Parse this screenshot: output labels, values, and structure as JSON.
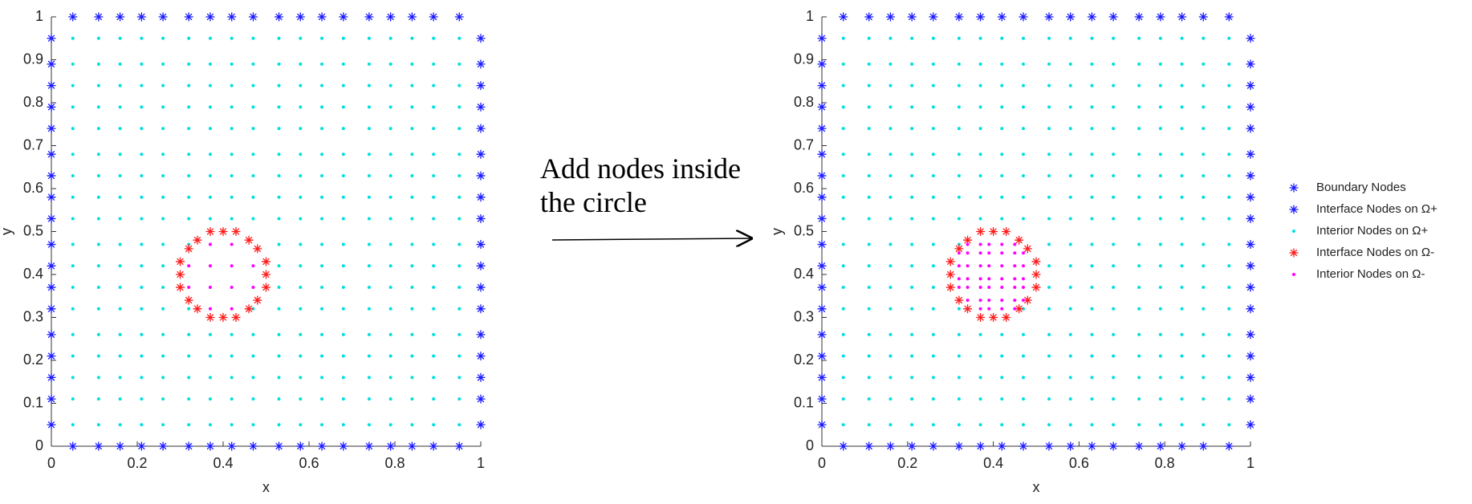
{
  "annotation": [
    "Add nodes inside",
    "the circle"
  ],
  "chart_data": [
    {
      "type": "scatter",
      "xlabel": "x",
      "ylabel": "y",
      "xlim": [
        0,
        1
      ],
      "ylim": [
        0,
        1
      ],
      "xticks": [
        0,
        0.2,
        0.4,
        0.6,
        0.8,
        1
      ],
      "yticks": [
        0,
        0.1,
        0.2,
        0.3,
        0.4,
        0.5,
        0.6,
        0.7,
        0.8,
        0.9,
        1
      ],
      "series": [
        {
          "name": "Boundary Nodes",
          "color": "#1a1aff",
          "marker": "*",
          "layout": "perimeter",
          "x": [
            0.05,
            0.11,
            0.16,
            0.21,
            0.26,
            0.32,
            0.37,
            0.42,
            0.47,
            0.53,
            0.58,
            0.63,
            0.68,
            0.74,
            0.79,
            0.84,
            0.89,
            0.95
          ],
          "y": [
            0.05,
            0.11,
            0.16,
            0.21,
            0.26,
            0.32,
            0.37,
            0.42,
            0.47,
            0.53,
            0.58,
            0.63,
            0.68,
            0.74,
            0.79,
            0.84,
            0.89,
            0.95
          ]
        },
        {
          "name": "Interface Nodes on Ω+",
          "color": "#1a1aff",
          "marker": "*",
          "layout": "points",
          "x": [],
          "y": []
        },
        {
          "name": "Interior Nodes on Ω+",
          "color": "#00e0e0",
          "marker": ".",
          "layout": "grid-outside",
          "x": [
            0.05,
            0.11,
            0.16,
            0.21,
            0.26,
            0.32,
            0.37,
            0.42,
            0.47,
            0.53,
            0.58,
            0.63,
            0.68,
            0.74,
            0.79,
            0.84,
            0.89,
            0.95
          ],
          "y": [
            0.05,
            0.11,
            0.16,
            0.21,
            0.26,
            0.32,
            0.37,
            0.42,
            0.47,
            0.53,
            0.58,
            0.63,
            0.68,
            0.74,
            0.79,
            0.84,
            0.89,
            0.95
          ]
        },
        {
          "name": "Interface Nodes on Ω-",
          "color": "#ff1a1a",
          "marker": "*",
          "layout": "ring",
          "x": [
            0.5,
            0.5,
            0.48,
            0.46,
            0.43,
            0.4,
            0.37,
            0.34,
            0.32,
            0.3,
            0.3,
            0.3,
            0.32,
            0.34,
            0.37,
            0.4,
            0.43,
            0.46,
            0.48,
            0.5
          ],
          "y": [
            0.4,
            0.43,
            0.46,
            0.48,
            0.5,
            0.5,
            0.5,
            0.48,
            0.46,
            0.43,
            0.4,
            0.37,
            0.34,
            0.32,
            0.3,
            0.3,
            0.3,
            0.32,
            0.34,
            0.37
          ]
        },
        {
          "name": "Interior Nodes on Ω-",
          "color": "#ff00ff",
          "marker": ".",
          "layout": "grid-inside",
          "x": [
            0.32,
            0.37,
            0.42,
            0.47
          ],
          "y": [
            0.32,
            0.37,
            0.42,
            0.47
          ]
        }
      ]
    },
    {
      "type": "scatter",
      "xlabel": "x",
      "ylabel": "y",
      "xlim": [
        0,
        1
      ],
      "ylim": [
        0,
        1
      ],
      "xticks": [
        0,
        0.2,
        0.4,
        0.6,
        0.8,
        1
      ],
      "yticks": [
        0,
        0.1,
        0.2,
        0.3,
        0.4,
        0.5,
        0.6,
        0.7,
        0.8,
        0.9,
        1
      ],
      "legend": "outside-right",
      "series": [
        {
          "name": "Boundary Nodes",
          "color": "#1a1aff",
          "marker": "*",
          "layout": "perimeter",
          "x": [
            0.05,
            0.11,
            0.16,
            0.21,
            0.26,
            0.32,
            0.37,
            0.42,
            0.47,
            0.53,
            0.58,
            0.63,
            0.68,
            0.74,
            0.79,
            0.84,
            0.89,
            0.95
          ],
          "y": [
            0.05,
            0.11,
            0.16,
            0.21,
            0.26,
            0.32,
            0.37,
            0.42,
            0.47,
            0.53,
            0.58,
            0.63,
            0.68,
            0.74,
            0.79,
            0.84,
            0.89,
            0.95
          ]
        },
        {
          "name": "Interface Nodes on Ω+",
          "color": "#1a1aff",
          "marker": "*",
          "layout": "points",
          "x": [],
          "y": []
        },
        {
          "name": "Interior Nodes on Ω+",
          "color": "#00e0e0",
          "marker": ".",
          "layout": "grid-outside",
          "x": [
            0.05,
            0.11,
            0.16,
            0.21,
            0.26,
            0.32,
            0.37,
            0.42,
            0.47,
            0.53,
            0.58,
            0.63,
            0.68,
            0.74,
            0.79,
            0.84,
            0.89,
            0.95
          ],
          "y": [
            0.05,
            0.11,
            0.16,
            0.21,
            0.26,
            0.32,
            0.37,
            0.42,
            0.47,
            0.53,
            0.58,
            0.63,
            0.68,
            0.74,
            0.79,
            0.84,
            0.89,
            0.95
          ]
        },
        {
          "name": "Interface Nodes on Ω-",
          "color": "#ff1a1a",
          "marker": "*",
          "layout": "ring",
          "x": [
            0.5,
            0.5,
            0.48,
            0.46,
            0.43,
            0.4,
            0.37,
            0.34,
            0.32,
            0.3,
            0.3,
            0.3,
            0.32,
            0.34,
            0.37,
            0.4,
            0.43,
            0.46,
            0.48,
            0.5
          ],
          "y": [
            0.4,
            0.43,
            0.46,
            0.48,
            0.5,
            0.5,
            0.5,
            0.48,
            0.46,
            0.43,
            0.4,
            0.37,
            0.34,
            0.32,
            0.3,
            0.3,
            0.3,
            0.32,
            0.34,
            0.37
          ]
        },
        {
          "name": "Interior Nodes on Ω-",
          "color": "#ff00ff",
          "marker": ".",
          "layout": "grid-inside",
          "x": [
            0.32,
            0.34,
            0.37,
            0.39,
            0.42,
            0.45,
            0.47
          ],
          "y": [
            0.32,
            0.34,
            0.37,
            0.39,
            0.42,
            0.45,
            0.47
          ]
        }
      ]
    }
  ]
}
